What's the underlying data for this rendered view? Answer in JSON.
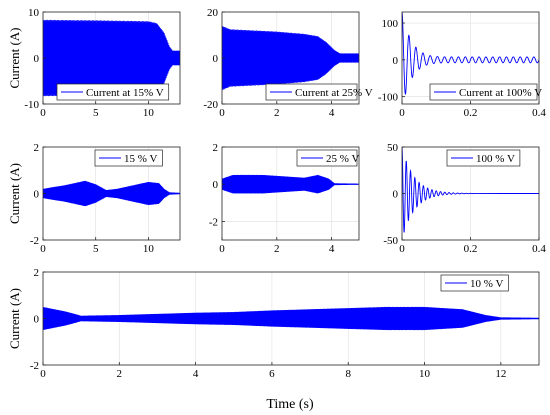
{
  "figure": {
    "shared_xlabel": "Time (s)",
    "shared_ylabel": "Current (A)",
    "line_color": "#0000ff"
  },
  "chart_data": [
    {
      "id": "p1",
      "type": "line",
      "xlabel": "",
      "ylabel": "Current (A)",
      "xlim": [
        0,
        13
      ],
      "ylim": [
        -10,
        10
      ],
      "xticks": [
        0,
        5,
        10
      ],
      "yticks": [
        -10,
        0,
        10
      ],
      "legend": "Current at 15% V",
      "legend_position": "bottom-left",
      "signal": {
        "kind": "osc",
        "points": [
          [
            0,
            8.3
          ],
          [
            5,
            8.2
          ],
          [
            10,
            8.0
          ],
          [
            10.8,
            7.6
          ],
          [
            11.5,
            5.5
          ],
          [
            12,
            2.5
          ],
          [
            12.3,
            1.6
          ],
          [
            13,
            1.6
          ]
        ]
      }
    },
    {
      "id": "p2",
      "type": "line",
      "xlabel": "",
      "ylabel": "",
      "xlim": [
        0,
        5
      ],
      "ylim": [
        -20,
        20
      ],
      "xticks": [
        0,
        2,
        4
      ],
      "yticks": [
        -20,
        0,
        20
      ],
      "legend": "Current at 25% V",
      "legend_position": "bottom-right",
      "signal": {
        "kind": "osc",
        "points": [
          [
            0,
            14
          ],
          [
            0.3,
            12.5
          ],
          [
            2,
            11.5
          ],
          [
            3,
            10.5
          ],
          [
            3.5,
            9.5
          ],
          [
            3.8,
            7
          ],
          [
            4.1,
            3.5
          ],
          [
            4.3,
            2
          ],
          [
            5,
            2
          ]
        ]
      }
    },
    {
      "id": "p3",
      "type": "line",
      "xlabel": "",
      "ylabel": "",
      "xlim": [
        0,
        0.4
      ],
      "ylim": [
        -120,
        130
      ],
      "xticks": [
        0,
        0.2,
        0.4
      ],
      "yticks": [
        -100,
        0,
        100
      ],
      "legend": "Current at 100% V",
      "legend_position": "bottom-right",
      "signal": {
        "kind": "damped",
        "amp": 130,
        "tau": 0.03,
        "freq": 50,
        "steady": 8
      }
    },
    {
      "id": "p4",
      "type": "line",
      "xlabel": "",
      "ylabel": "Current (A)",
      "xlim": [
        0,
        13
      ],
      "ylim": [
        -2,
        2
      ],
      "xticks": [
        0,
        5,
        10
      ],
      "yticks": [
        -2,
        0,
        2
      ],
      "legend": "15 % V",
      "legend_position": "top-right",
      "signal": {
        "kind": "osc",
        "points": [
          [
            0,
            0.2
          ],
          [
            1,
            0.28
          ],
          [
            2,
            0.35
          ],
          [
            3,
            0.45
          ],
          [
            4,
            0.55
          ],
          [
            5,
            0.4
          ],
          [
            6,
            0.15
          ],
          [
            7,
            0.2
          ],
          [
            8,
            0.3
          ],
          [
            9,
            0.4
          ],
          [
            10,
            0.5
          ],
          [
            11,
            0.45
          ],
          [
            11.5,
            0.2
          ],
          [
            12,
            0.05
          ],
          [
            13,
            0.03
          ]
        ]
      }
    },
    {
      "id": "p5",
      "type": "line",
      "xlabel": "",
      "ylabel": "",
      "xlim": [
        0,
        5
      ],
      "ylim": [
        -3,
        2
      ],
      "xticks": [
        0,
        2,
        4
      ],
      "yticks": [
        -2,
        0,
        2
      ],
      "legend": "25 % V",
      "legend_position": "top-right",
      "signal": {
        "kind": "osc",
        "points": [
          [
            0,
            0.3
          ],
          [
            0.4,
            0.5
          ],
          [
            0.8,
            0.5
          ],
          [
            1.5,
            0.5
          ],
          [
            2.5,
            0.4
          ],
          [
            3,
            0.35
          ],
          [
            3.5,
            0.5
          ],
          [
            3.9,
            0.3
          ],
          [
            4.1,
            0.05
          ],
          [
            5,
            0.03
          ]
        ]
      }
    },
    {
      "id": "p6",
      "type": "line",
      "xlabel": "",
      "ylabel": "",
      "xlim": [
        0,
        0.4
      ],
      "ylim": [
        -50,
        50
      ],
      "xticks": [
        0,
        0.2,
        0.4
      ],
      "yticks": [
        -50,
        0,
        50
      ],
      "legend": "100 % V",
      "legend_position": "top-right",
      "signal": {
        "kind": "damped",
        "amp": 50,
        "tau": 0.035,
        "freq": 80,
        "steady": 0
      }
    },
    {
      "id": "p7",
      "type": "line",
      "xlabel": "Time (s)",
      "ylabel": "Current (A)",
      "xlim": [
        0,
        13
      ],
      "ylim": [
        -2,
        2
      ],
      "xticks": [
        0,
        2,
        4,
        6,
        8,
        10,
        12
      ],
      "yticks": [
        -2,
        0,
        2
      ],
      "legend": "10 % V",
      "legend_position": "top-right",
      "signal": {
        "kind": "osc",
        "points": [
          [
            0,
            0.5
          ],
          [
            0.6,
            0.3
          ],
          [
            1,
            0.12
          ],
          [
            2,
            0.15
          ],
          [
            3,
            0.2
          ],
          [
            4,
            0.25
          ],
          [
            5,
            0.28
          ],
          [
            6,
            0.35
          ],
          [
            7,
            0.4
          ],
          [
            8,
            0.45
          ],
          [
            9,
            0.5
          ],
          [
            10,
            0.5
          ],
          [
            11,
            0.4
          ],
          [
            11.6,
            0.15
          ],
          [
            12,
            0.05
          ],
          [
            13,
            0.03
          ]
        ]
      }
    }
  ]
}
